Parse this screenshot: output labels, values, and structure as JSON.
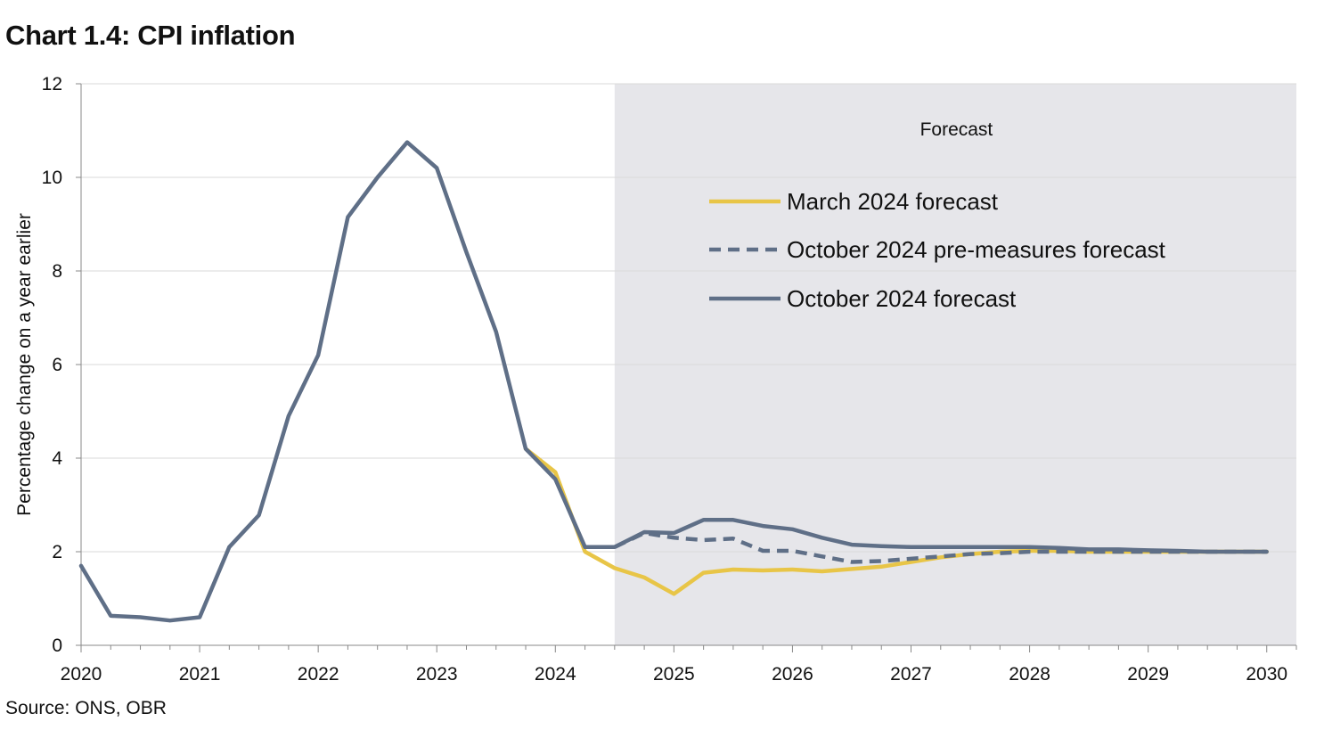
{
  "page": {
    "title": "Chart 1.4: CPI inflation",
    "source": "Source: ONS, OBR"
  },
  "chart_data": {
    "type": "line",
    "ylabel": "Percentage change on a year earlier",
    "ylim": [
      0,
      12
    ],
    "yticks": [
      0,
      2,
      4,
      6,
      8,
      10,
      12
    ],
    "xlim": [
      2020,
      2030.25
    ],
    "xticks": [
      2020,
      2021,
      2022,
      2023,
      2024,
      2025,
      2026,
      2027,
      2028,
      2029,
      2030
    ],
    "grid": "horizontal",
    "shaded_region": {
      "start": 2024.5,
      "end": 2030.25,
      "label": "Forecast",
      "color": "#e6e6ea"
    },
    "legend_position": "top-center",
    "series": [
      {
        "name": "March 2024 forecast",
        "color": "#e8c547",
        "style": "solid",
        "points": [
          [
            2023.75,
            4.2
          ],
          [
            2024.0,
            3.7
          ],
          [
            2024.25,
            2.0
          ],
          [
            2024.5,
            1.65
          ],
          [
            2024.75,
            1.45
          ],
          [
            2025.0,
            1.1
          ],
          [
            2025.25,
            1.55
          ],
          [
            2025.5,
            1.62
          ],
          [
            2025.75,
            1.6
          ],
          [
            2026.0,
            1.62
          ],
          [
            2026.25,
            1.58
          ],
          [
            2026.5,
            1.63
          ],
          [
            2026.75,
            1.68
          ],
          [
            2027.0,
            1.78
          ],
          [
            2027.25,
            1.88
          ],
          [
            2027.5,
            1.95
          ],
          [
            2027.75,
            2.0
          ],
          [
            2028.0,
            2.02
          ],
          [
            2028.25,
            2.02
          ],
          [
            2028.5,
            2.0
          ],
          [
            2028.75,
            2.0
          ],
          [
            2029.0,
            2.0
          ],
          [
            2029.25,
            2.0
          ],
          [
            2029.5,
            2.0
          ],
          [
            2029.75,
            2.0
          ],
          [
            2030.0,
            2.0
          ]
        ]
      },
      {
        "name": "October 2024 pre-measures forecast",
        "color": "#5f6f87",
        "style": "dashed",
        "points": [
          [
            2024.5,
            2.1
          ],
          [
            2024.75,
            2.4
          ],
          [
            2025.0,
            2.3
          ],
          [
            2025.25,
            2.25
          ],
          [
            2025.5,
            2.28
          ],
          [
            2025.75,
            2.02
          ],
          [
            2026.0,
            2.02
          ],
          [
            2026.25,
            1.9
          ],
          [
            2026.5,
            1.78
          ],
          [
            2026.75,
            1.8
          ],
          [
            2027.0,
            1.85
          ],
          [
            2027.25,
            1.9
          ],
          [
            2027.5,
            1.95
          ],
          [
            2027.75,
            1.97
          ],
          [
            2028.0,
            2.0
          ],
          [
            2028.25,
            2.0
          ],
          [
            2028.5,
            2.0
          ],
          [
            2028.75,
            2.0
          ],
          [
            2029.0,
            2.0
          ],
          [
            2029.25,
            2.0
          ],
          [
            2029.5,
            2.0
          ],
          [
            2029.75,
            2.0
          ],
          [
            2030.0,
            2.0
          ]
        ]
      },
      {
        "name": "October 2024 forecast",
        "color": "#5f6f87",
        "style": "solid",
        "points": [
          [
            2020.0,
            1.7
          ],
          [
            2020.25,
            0.63
          ],
          [
            2020.5,
            0.6
          ],
          [
            2020.75,
            0.53
          ],
          [
            2021.0,
            0.6
          ],
          [
            2021.25,
            2.1
          ],
          [
            2021.5,
            2.78
          ],
          [
            2021.75,
            4.9
          ],
          [
            2022.0,
            6.2
          ],
          [
            2022.25,
            9.15
          ],
          [
            2022.5,
            10.0
          ],
          [
            2022.75,
            10.75
          ],
          [
            2023.0,
            10.2
          ],
          [
            2023.25,
            8.4
          ],
          [
            2023.5,
            6.7
          ],
          [
            2023.75,
            4.2
          ],
          [
            2024.0,
            3.55
          ],
          [
            2024.25,
            2.1
          ],
          [
            2024.5,
            2.1
          ],
          [
            2024.75,
            2.42
          ],
          [
            2025.0,
            2.4
          ],
          [
            2025.25,
            2.68
          ],
          [
            2025.5,
            2.68
          ],
          [
            2025.75,
            2.55
          ],
          [
            2026.0,
            2.48
          ],
          [
            2026.25,
            2.3
          ],
          [
            2026.5,
            2.15
          ],
          [
            2026.75,
            2.12
          ],
          [
            2027.0,
            2.1
          ],
          [
            2027.25,
            2.1
          ],
          [
            2027.5,
            2.1
          ],
          [
            2027.75,
            2.1
          ],
          [
            2028.0,
            2.1
          ],
          [
            2028.25,
            2.08
          ],
          [
            2028.5,
            2.05
          ],
          [
            2028.75,
            2.05
          ],
          [
            2029.0,
            2.03
          ],
          [
            2029.25,
            2.02
          ],
          [
            2029.5,
            2.0
          ],
          [
            2029.75,
            2.0
          ],
          [
            2030.0,
            2.0
          ]
        ]
      }
    ]
  }
}
